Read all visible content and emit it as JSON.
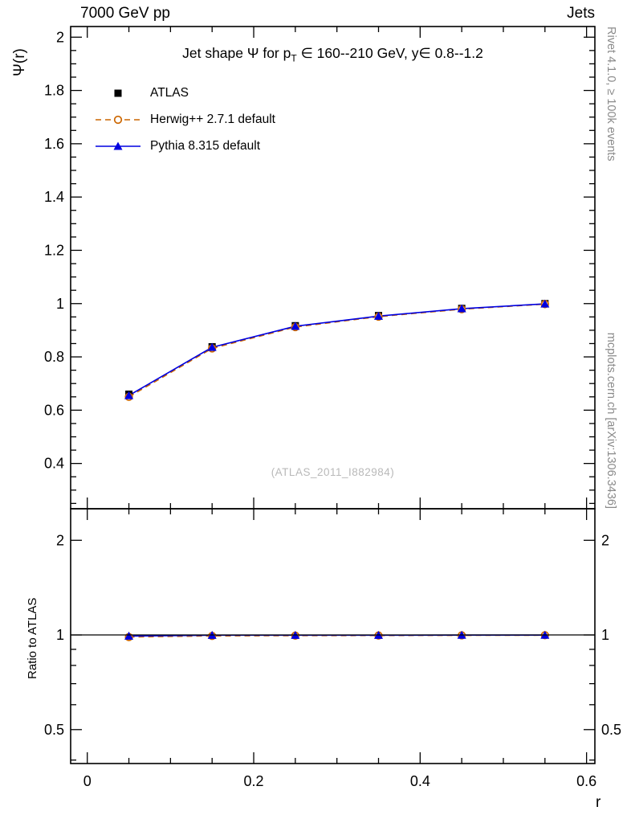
{
  "header": {
    "left": "7000 GeV pp",
    "right": "Jets"
  },
  "main_panel": {
    "title_prefix": "Jet shape Ψ for p",
    "title_sub": "T",
    "title_suffix": " ∈ 160--210 GeV, y∈ 0.8--1.2",
    "ylabel": "Ψ(r)",
    "watermark": "(ATLAS_2011_I882984)"
  },
  "ratio_panel": {
    "ylabel": "Ratio to ATLAS",
    "reference_value": 1
  },
  "right_margin": {
    "rivet": "Rivet 4.1.0, ≥ 100k events",
    "mcplots": "mcplots.cern.ch [arXiv:1306.3436]"
  },
  "xaxis_label": "r",
  "colors": {
    "frame": "#000000",
    "atlas": "#000000",
    "herwig": "#cc6600",
    "pythia": "#0000e0",
    "watermark": "#b9b9b9",
    "margin_text": "#8a8a8a"
  },
  "chart_data": {
    "type": "line",
    "title": "Jet shape Ψ for pT ∈ 160--210 GeV, y∈ 0.8--1.2",
    "xlabel": "r",
    "ylabel_main": "Ψ(r)",
    "ylabel_ratio": "Ratio to ATLAS",
    "x": [
      0.05,
      0.15,
      0.25,
      0.35,
      0.45,
      0.55
    ],
    "series": [
      {
        "name": "ATLAS",
        "marker": "square",
        "color": "#000000",
        "line": "none",
        "values": [
          0.66,
          0.838,
          0.917,
          0.955,
          0.982,
          1.0
        ]
      },
      {
        "name": "Herwig++ 2.7.1 default",
        "marker": "circle-open",
        "color": "#cc6600",
        "line": "dashed",
        "values": [
          0.65,
          0.832,
          0.912,
          0.951,
          0.979,
          0.998
        ],
        "ratio": [
          0.985,
          0.993,
          0.995,
          0.996,
          0.997,
          0.998
        ]
      },
      {
        "name": "Pythia 8.315 default",
        "marker": "triangle",
        "color": "#0000e0",
        "line": "solid",
        "values": [
          0.655,
          0.836,
          0.915,
          0.953,
          0.981,
          0.999
        ],
        "ratio": [
          0.992,
          0.998,
          0.998,
          0.998,
          0.999,
          0.999
        ]
      }
    ],
    "xlim": [
      -0.02,
      0.61
    ],
    "ylim_main": [
      0.23,
      2.04
    ],
    "ylim_ratio": [
      0.39,
      2.52
    ],
    "ratio_scale": "log",
    "x_ticks": {
      "major": [
        0,
        0.2,
        0.4,
        0.6
      ],
      "labels": [
        "0",
        "0.2",
        "0.4",
        "0.6"
      ],
      "minor_step": 0.05
    },
    "y_ticks_main": {
      "major": [
        0.4,
        0.6,
        0.8,
        1,
        1.2,
        1.4,
        1.6,
        1.8,
        2
      ],
      "labels": [
        "0.4",
        "0.6",
        "0.8",
        "1",
        "1.2",
        "1.4",
        "1.6",
        "1.8",
        "2"
      ],
      "minor_step": 0.05
    },
    "y_ticks_ratio": {
      "major": [
        0.5,
        1,
        2
      ],
      "labels": [
        "0.5",
        "1",
        "2"
      ],
      "minor": [
        0.4,
        0.6,
        0.7,
        0.8,
        0.9
      ]
    },
    "legend_position": "top-left",
    "grid": false
  }
}
